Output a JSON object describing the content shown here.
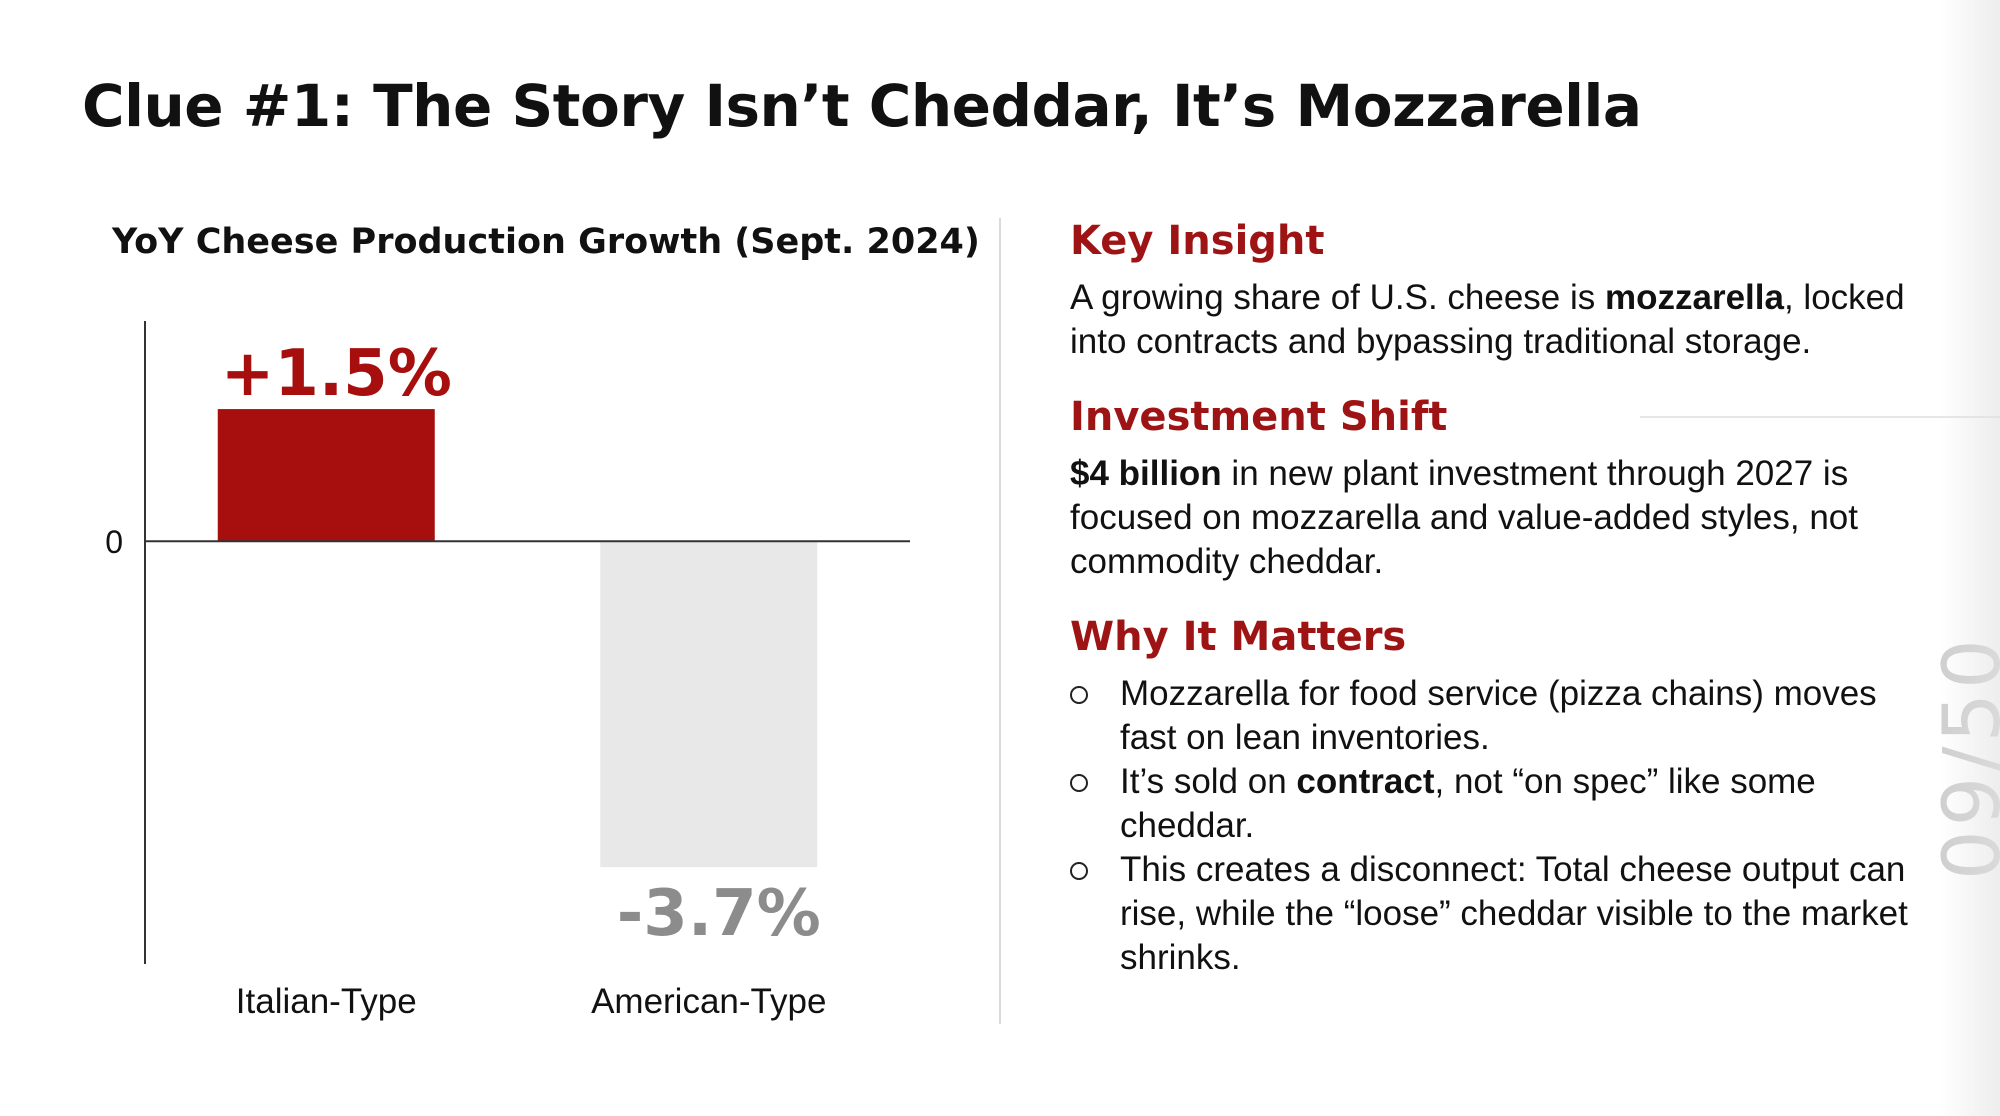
{
  "slide": {
    "title": "Clue #1: The Story Isn’t Cheddar, It’s Mozzarella"
  },
  "colors": {
    "accent_red": "#a70f0f",
    "heading_red": "#9e1414",
    "gray_bar": "#e8e8e8",
    "gray_label": "#8c8c8c",
    "text": "#111111"
  },
  "chart_data": {
    "type": "bar",
    "title": "YoY Cheese Production Growth (Sept. 2024)",
    "categories": [
      "Italian-Type",
      "American-Type"
    ],
    "values": [
      1.5,
      -3.7
    ],
    "value_labels": [
      "+1.5%",
      "-3.7%"
    ],
    "bar_colors": [
      "#a70f0f",
      "#e8e8e8"
    ],
    "label_colors": [
      "#a70f0f",
      "#8c8c8c"
    ],
    "zero_label": "0",
    "ylim": [
      -4.8,
      2.5
    ],
    "xlabel": "",
    "ylabel": "",
    "grid": false
  },
  "panel": {
    "key_insight": {
      "heading": "Key Insight",
      "text_before": "A growing share of U.S. cheese is ",
      "text_bold": "mozzarella",
      "text_after": ", locked into contracts and bypassing traditional storage."
    },
    "investment_shift": {
      "heading": "Investment Shift",
      "text_bold": "$4 billion",
      "text_after": " in new plant investment through 2027 is focused on mozzarella and value-added styles, not commodity cheddar."
    },
    "why_it_matters": {
      "heading": "Why It Matters",
      "bullets": [
        {
          "before": "Mozzarella for food service (pizza chains) moves fast on lean inventories.",
          "bold": "",
          "after": ""
        },
        {
          "before": "It’s sold on ",
          "bold": "contract",
          "after": ", not “on spec” like some cheddar."
        },
        {
          "before": "This creates a disconnect: Total cheese output can rise, while the “loose” cheddar visible to the market shrinks.",
          "bold": "",
          "after": ""
        }
      ]
    }
  },
  "decor": {
    "stamp_text": "09/50"
  }
}
